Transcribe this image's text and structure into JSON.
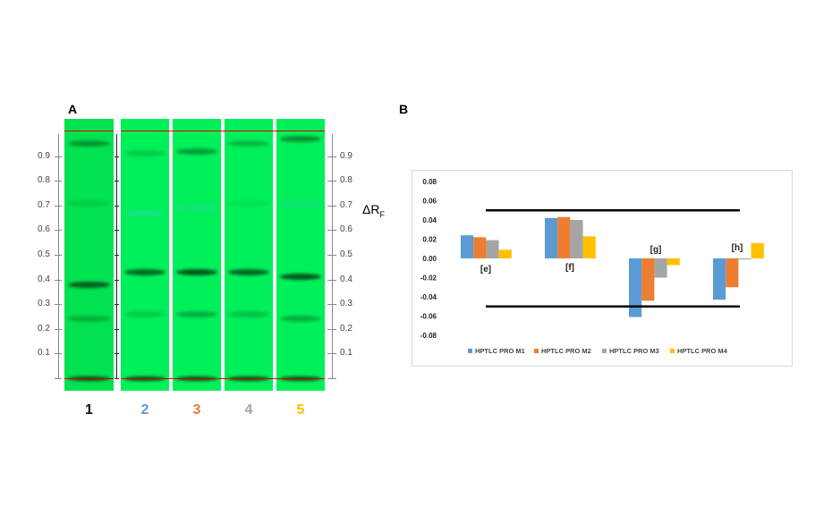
{
  "panel_a": {
    "label": "A",
    "axis_ticks": [
      "0.1",
      "0.2",
      "0.3",
      "0.4",
      "0.5",
      "0.6",
      "0.7",
      "0.8",
      "0.9"
    ],
    "axis_label_main": "ΔR",
    "axis_label_sub": "F",
    "lanes": [
      {
        "number": "1",
        "color": "#111111",
        "bands": [
          {
            "rf": 0.95,
            "i": 0.45
          },
          {
            "rf": 0.71,
            "i": 0.12
          },
          {
            "rf": 0.38,
            "i": 0.8
          },
          {
            "rf": 0.24,
            "i": 0.3
          },
          {
            "rf": 0.0,
            "i": 0.95
          }
        ]
      },
      {
        "number": "2",
        "color": "#5b9bd5",
        "bands": [
          {
            "rf": 0.91,
            "i": 0.2
          },
          {
            "rf": 0.67,
            "i": 0.15,
            "tint": "blue"
          },
          {
            "rf": 0.43,
            "i": 0.75
          },
          {
            "rf": 0.26,
            "i": 0.2
          },
          {
            "rf": 0.0,
            "i": 0.95
          }
        ]
      },
      {
        "number": "3",
        "color": "#ed7d31",
        "bands": [
          {
            "rf": 0.92,
            "i": 0.45
          },
          {
            "rf": 0.69,
            "i": 0.15,
            "tint": "blue"
          },
          {
            "rf": 0.43,
            "i": 0.85
          },
          {
            "rf": 0.26,
            "i": 0.35
          },
          {
            "rf": 0.0,
            "i": 0.95
          }
        ]
      },
      {
        "number": "4",
        "color": "#a5a5a5",
        "bands": [
          {
            "rf": 0.95,
            "i": 0.3
          },
          {
            "rf": 0.71,
            "i": 0.08
          },
          {
            "rf": 0.43,
            "i": 0.75
          },
          {
            "rf": 0.26,
            "i": 0.25
          },
          {
            "rf": 0.0,
            "i": 0.95
          }
        ]
      },
      {
        "number": "5",
        "color": "#ffc000",
        "bands": [
          {
            "rf": 0.97,
            "i": 0.5
          },
          {
            "rf": 0.71,
            "i": 0.1,
            "tint": "blue"
          },
          {
            "rf": 0.41,
            "i": 0.85
          },
          {
            "rf": 0.24,
            "i": 0.35
          },
          {
            "rf": 0.0,
            "i": 0.95
          }
        ]
      }
    ]
  },
  "panel_b": {
    "label": "B"
  },
  "chart_data": {
    "type": "bar",
    "categories": [
      "[e]",
      "[f]",
      "[g]",
      "[h]"
    ],
    "series": [
      {
        "name": "HPTLC PRO M1",
        "color": "#5b9bd5",
        "values": [
          0.024,
          0.042,
          -0.061,
          -0.043
        ]
      },
      {
        "name": "HPTLC PRO M2",
        "color": "#ed7d31",
        "values": [
          0.022,
          0.043,
          -0.044,
          -0.03
        ]
      },
      {
        "name": "HPTLC PRO M3",
        "color": "#a5a5a5",
        "values": [
          0.019,
          0.04,
          -0.02,
          -0.001
        ]
      },
      {
        "name": "HPTLC PRO M4",
        "color": "#ffc000",
        "values": [
          0.009,
          0.023,
          -0.007,
          0.016
        ]
      }
    ],
    "ylim": [
      -0.08,
      0.08
    ],
    "yticks": [
      "0.08",
      "0.06",
      "0.04",
      "0.02",
      "0.00",
      "-0.02",
      "-0.04",
      "-0.06",
      "-0.08"
    ],
    "limit_lines": [
      0.05,
      -0.05
    ],
    "grid": false,
    "legend": "bottom"
  }
}
